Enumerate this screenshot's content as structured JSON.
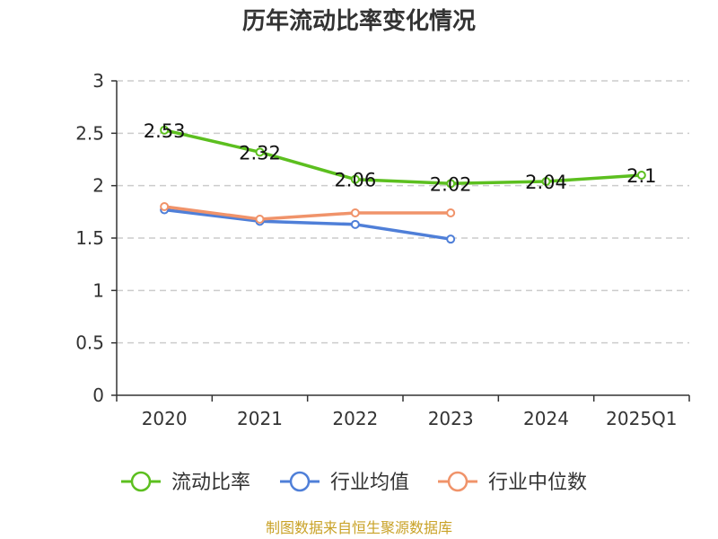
{
  "chart_data": {
    "type": "line",
    "title": "历年流动比率变化情况",
    "categories": [
      "2020",
      "2021",
      "2022",
      "2023",
      "2024",
      "2025Q1"
    ],
    "ylim": [
      0,
      3
    ],
    "yticks": [
      "0",
      "0.5",
      "1",
      "1.5",
      "2",
      "2.5",
      "3"
    ],
    "grid": true,
    "legend_position": "bottom",
    "series": [
      {
        "name": "流动比率",
        "color": "#5cbf1f",
        "values": [
          2.53,
          2.32,
          2.06,
          2.02,
          2.04,
          2.1
        ],
        "labels": [
          "2.53",
          "2.32",
          "2.06",
          "2.02",
          "2.04",
          "2.1"
        ]
      },
      {
        "name": "行业均值",
        "color": "#4f7fd8",
        "values": [
          1.77,
          1.66,
          1.63,
          1.49,
          null,
          null
        ]
      },
      {
        "name": "行业中位数",
        "color": "#f0936a",
        "values": [
          1.8,
          1.68,
          1.74,
          1.74,
          null,
          null
        ]
      }
    ],
    "source": "制图数据来自恒生聚源数据库"
  }
}
